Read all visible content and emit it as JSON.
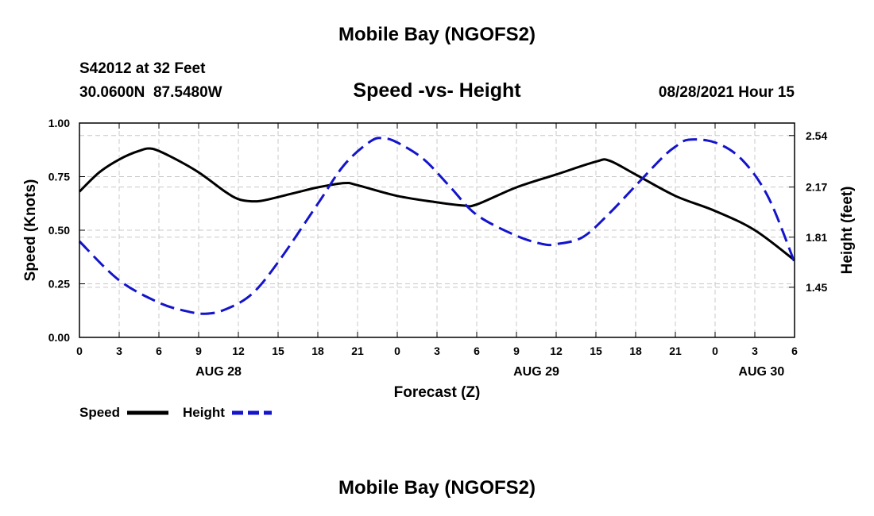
{
  "page": {
    "top_title": "Mobile Bay (NGOFS2)",
    "bottom_title": "Mobile Bay (NGOFS2)",
    "station": "S42012 at 32 Feet",
    "coordinates": "30.0600N  87.5480W",
    "timestamp": "08/28/2021 Hour 15"
  },
  "chart_data": {
    "type": "line",
    "title": "Speed -vs- Height",
    "xlabel": "Forecast (Z)",
    "ylabel": "Speed (Knots)",
    "y2label": "Height (feet)",
    "x_range": [
      0,
      54
    ],
    "x_ticks": [
      0,
      3,
      6,
      9,
      12,
      15,
      18,
      21,
      24,
      27,
      30,
      33,
      36,
      39,
      42,
      45,
      48,
      51,
      54
    ],
    "x_tick_labels": [
      "0",
      "3",
      "6",
      "9",
      "12",
      "15",
      "18",
      "21",
      "0",
      "3",
      "6",
      "9",
      "12",
      "15",
      "18",
      "21",
      "0",
      "3",
      "6"
    ],
    "date_labels": [
      {
        "x": 10.5,
        "label": "AUG 28"
      },
      {
        "x": 34.5,
        "label": "AUG 29"
      },
      {
        "x": 51.5,
        "label": "AUG 30"
      }
    ],
    "ylim": [
      0,
      1
    ],
    "y_ticks": [
      0,
      0.25,
      0.5,
      0.75,
      1.0
    ],
    "y_tick_labels": [
      "0.00",
      "0.25",
      "0.50",
      "0.75",
      "1.00"
    ],
    "y2lim": [
      1.09,
      2.63
    ],
    "y2_ticks": [
      1.45,
      1.81,
      2.17,
      2.54
    ],
    "y2_tick_labels": [
      "1.45",
      "1.81",
      "2.17",
      "2.54"
    ],
    "grid": true,
    "legend": "bottom-left",
    "series": [
      {
        "name": "Speed",
        "axis": "left",
        "color": "#000000",
        "style": "solid",
        "x": [
          0,
          1.5,
          3,
          4.5,
          5.5,
          7,
          9,
          11,
          12,
          13,
          14,
          16,
          18,
          20,
          21,
          24,
          27,
          29,
          30,
          33,
          36,
          39,
          40,
          42,
          45,
          48,
          51,
          54
        ],
        "y": [
          0.68,
          0.77,
          0.83,
          0.87,
          0.88,
          0.84,
          0.77,
          0.68,
          0.645,
          0.635,
          0.64,
          0.67,
          0.7,
          0.72,
          0.71,
          0.66,
          0.63,
          0.615,
          0.62,
          0.7,
          0.76,
          0.82,
          0.825,
          0.76,
          0.66,
          0.59,
          0.5,
          0.36
        ]
      },
      {
        "name": "Height",
        "axis": "right",
        "color": "#1414CC",
        "style": "dashed",
        "x": [
          0,
          3,
          6,
          8,
          9.5,
          11,
          13,
          15,
          18,
          20,
          22,
          23,
          24,
          26,
          28,
          30,
          33,
          35,
          36,
          38,
          40,
          42,
          44,
          45,
          46,
          48,
          50,
          52,
          54
        ],
        "y": [
          1.78,
          1.5,
          1.34,
          1.28,
          1.26,
          1.29,
          1.4,
          1.63,
          2.05,
          2.33,
          2.5,
          2.52,
          2.49,
          2.37,
          2.17,
          1.97,
          1.82,
          1.76,
          1.76,
          1.81,
          1.98,
          2.18,
          2.38,
          2.46,
          2.51,
          2.49,
          2.37,
          2.1,
          1.63
        ]
      }
    ]
  }
}
